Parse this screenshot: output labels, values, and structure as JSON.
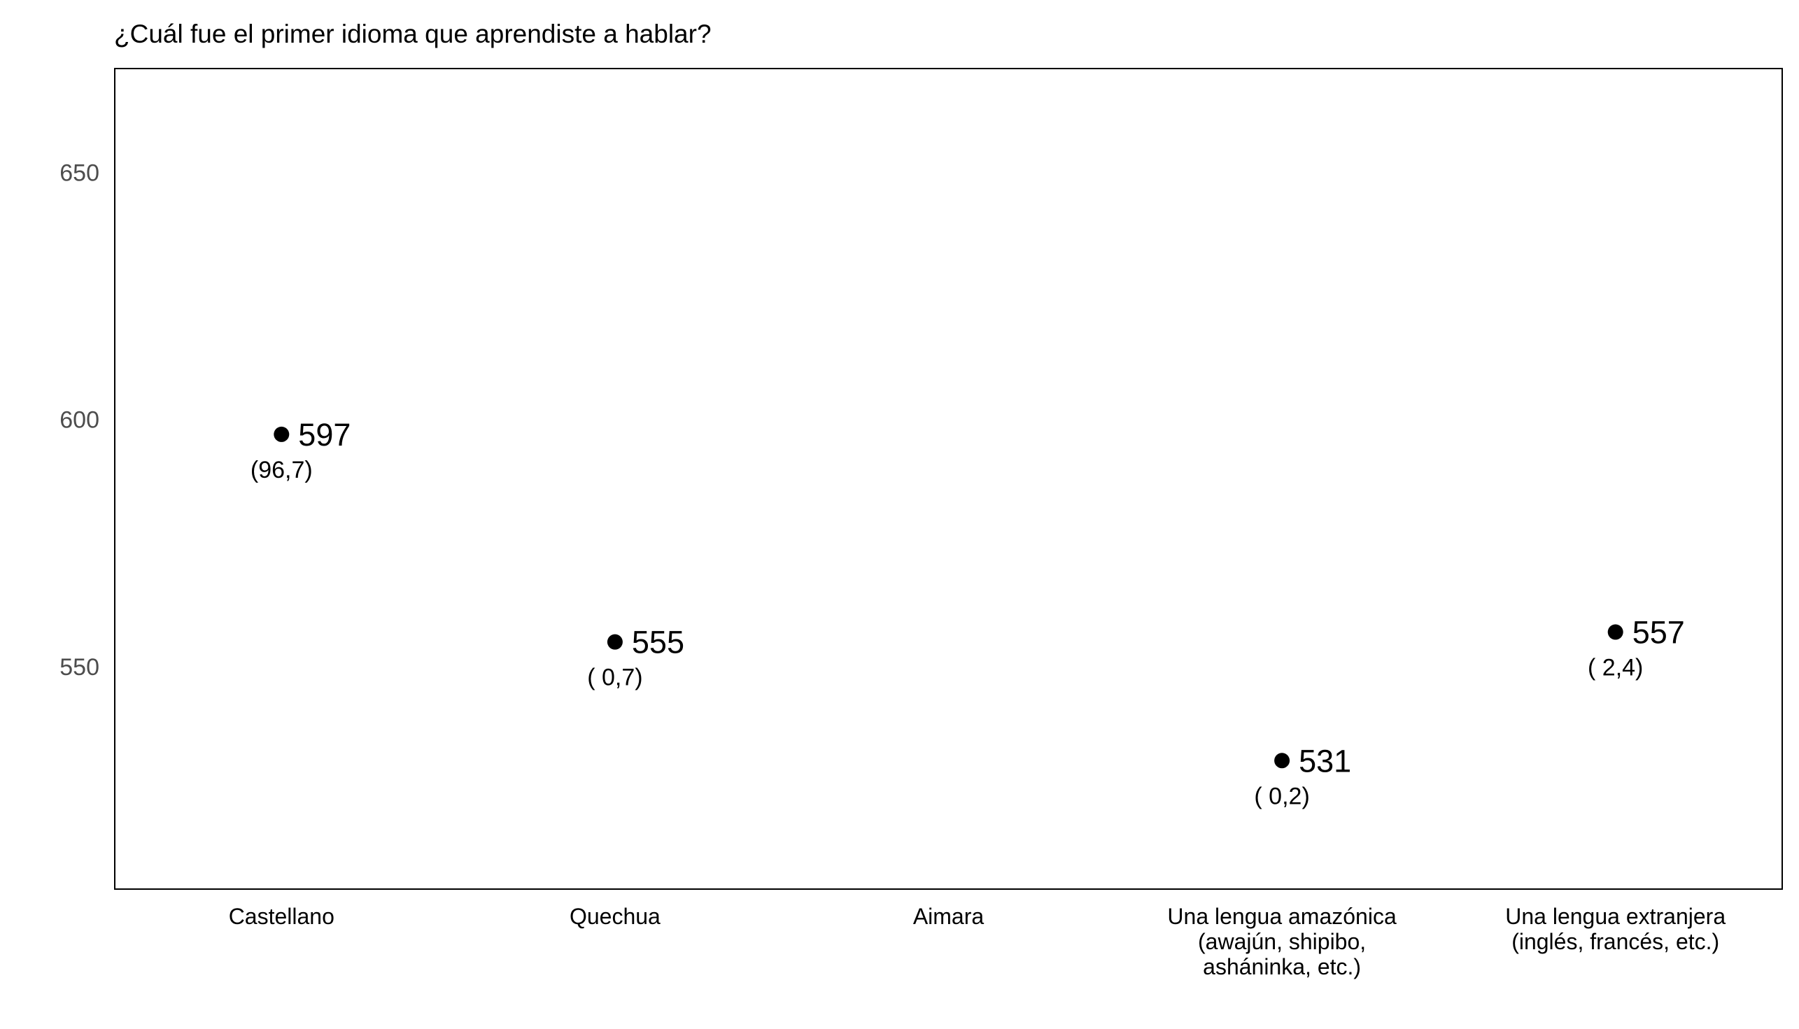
{
  "chart_data": {
    "type": "scatter",
    "title": "¿Cuál fue el primer idioma que aprendiste a hablar?",
    "xlabel": "",
    "ylabel": "",
    "ylim": [
      505,
      671
    ],
    "y_ticks": [
      "550",
      "600",
      "650"
    ],
    "grid": false,
    "legend": "none",
    "categories": [
      [
        "Castellano"
      ],
      [
        "Quechua"
      ],
      [
        "Aimara"
      ],
      [
        "Una lengua amazónica",
        "(awajún, shipibo,",
        "asháninka, etc.)"
      ],
      [
        "Una lengua extranjera",
        "(inglés, francés, etc.)"
      ]
    ],
    "points": [
      {
        "category_index": 0,
        "value": 597,
        "label": "597",
        "percent_label": "(96,7)"
      },
      {
        "category_index": 1,
        "value": 555,
        "label": "555",
        "percent_label": "( 0,7)"
      },
      {
        "category_index": 3,
        "value": 531,
        "label": "531",
        "percent_label": "( 0,2)"
      },
      {
        "category_index": 4,
        "value": 557,
        "label": "557",
        "percent_label": "( 2,4)"
      }
    ],
    "colors": {
      "point": "#000000",
      "axis_text": "#4d4d4d",
      "frame": "#000000"
    }
  }
}
